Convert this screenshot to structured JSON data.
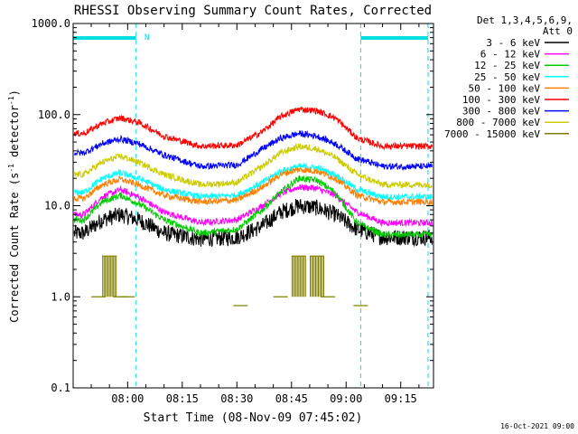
{
  "chart_data": {
    "type": "line",
    "title": "RHESSI Observing Summary Count Rates, Corrected",
    "xlabel": "Start Time (08-Nov-09 07:45:02)",
    "ylabel": "Corrected Count Rate (s",
    "ylabel_sup": "-1",
    "ylabel_mid": " detector",
    "ylabel_end": ")",
    "y_scale": "log",
    "ylim": [
      0.1,
      1000
    ],
    "xlim": [
      "07:45:02",
      "09:24:00"
    ],
    "x_ticks": [
      "08:00",
      "08:15",
      "08:30",
      "08:45",
      "09:00",
      "09:15"
    ],
    "y_ticks": [
      "0.1",
      "1.0",
      "10.0",
      "100.0",
      "1000.0"
    ],
    "legend_header": [
      "Det 1,3,4,5,6,9,",
      "Att 0"
    ],
    "legend_position": "right",
    "night_intervals": [
      [
        "07:45:02",
        "08:02:20"
      ],
      [
        "09:04:00",
        "09:22:30"
      ]
    ],
    "saa_marker": "N",
    "footer_date": "16-Oct-2021 09:00",
    "series": [
      {
        "name": "3 - 6 keV",
        "color": "#000000",
        "x": [
          "07:48",
          "07:53",
          "07:58",
          "08:03",
          "08:10",
          "08:20",
          "08:30",
          "08:37",
          "08:42",
          "08:47",
          "08:52",
          "08:57",
          "09:03",
          "09:10",
          "09:20"
        ],
        "y": [
          5.0,
          7.0,
          8.0,
          7.0,
          5.0,
          4.3,
          4.5,
          6.0,
          8.5,
          10.0,
          9.5,
          8.0,
          5.5,
          4.5,
          4.5
        ]
      },
      {
        "name": "6 - 12 keV",
        "color": "#ff00ff",
        "x": [
          "07:48",
          "07:53",
          "07:58",
          "08:03",
          "08:10",
          "08:20",
          "08:30",
          "08:37",
          "08:42",
          "08:47",
          "08:52",
          "08:57",
          "09:03",
          "09:10",
          "09:20"
        ],
        "y": [
          8.0,
          12.5,
          15.0,
          12.5,
          8.5,
          6.5,
          7.0,
          10.0,
          13.5,
          16.0,
          15.5,
          13.0,
          8.5,
          6.5,
          6.5
        ]
      },
      {
        "name": "12 - 25 keV",
        "color": "#00cc00",
        "x": [
          "07:48",
          "07:53",
          "07:58",
          "08:03",
          "08:10",
          "08:20",
          "08:30",
          "08:37",
          "08:42",
          "08:47",
          "08:52",
          "08:57",
          "09:03",
          "09:10",
          "09:20"
        ],
        "y": [
          7.0,
          11.0,
          13.0,
          10.5,
          7.0,
          5.0,
          5.5,
          9.0,
          14.0,
          20.0,
          19.0,
          14.0,
          6.5,
          4.8,
          4.8
        ]
      },
      {
        "name": "25 - 50 keV",
        "color": "#00ffff",
        "x": [
          "07:48",
          "07:53",
          "07:58",
          "08:03",
          "08:10",
          "08:20",
          "08:30",
          "08:37",
          "08:42",
          "08:47",
          "08:52",
          "08:57",
          "09:03",
          "09:10",
          "09:20"
        ],
        "y": [
          14.0,
          20.0,
          23.0,
          20.0,
          15.0,
          12.5,
          13.0,
          18.0,
          24.0,
          27.0,
          26.0,
          22.0,
          15.0,
          12.5,
          12.5
        ]
      },
      {
        "name": "50 - 100 keV",
        "color": "#ff8000",
        "x": [
          "07:48",
          "07:53",
          "07:58",
          "08:03",
          "08:10",
          "08:20",
          "08:30",
          "08:37",
          "08:42",
          "08:47",
          "08:52",
          "08:57",
          "09:03",
          "09:10",
          "09:20"
        ],
        "y": [
          12.0,
          17.0,
          19.5,
          17.0,
          13.0,
          11.0,
          11.5,
          16.0,
          22.0,
          25.0,
          24.0,
          20.0,
          13.0,
          11.0,
          11.0
        ]
      },
      {
        "name": "100 - 300 keV",
        "color": "#ff0000",
        "x": [
          "07:48",
          "07:53",
          "07:58",
          "08:03",
          "08:10",
          "08:20",
          "08:30",
          "08:37",
          "08:42",
          "08:47",
          "08:52",
          "08:57",
          "09:03",
          "09:10",
          "09:20"
        ],
        "y": [
          62.0,
          80.0,
          92.0,
          82.0,
          58.0,
          45.0,
          46.0,
          65.0,
          95.0,
          115.0,
          110.0,
          92.0,
          55.0,
          45.0,
          45.0
        ]
      },
      {
        "name": "300 - 800 keV",
        "color": "#0000ff",
        "x": [
          "07:48",
          "07:53",
          "07:58",
          "08:03",
          "08:10",
          "08:20",
          "08:30",
          "08:37",
          "08:42",
          "08:47",
          "08:52",
          "08:57",
          "09:03",
          "09:10",
          "09:20"
        ],
        "y": [
          38.0,
          48.0,
          54.0,
          48.0,
          36.0,
          27.0,
          28.0,
          42.0,
          55.0,
          62.0,
          58.0,
          48.0,
          33.0,
          27.0,
          27.0
        ]
      },
      {
        "name": "800 - 7000 keV",
        "color": "#cccc00",
        "x": [
          "07:48",
          "07:53",
          "07:58",
          "08:03",
          "08:10",
          "08:20",
          "08:30",
          "08:37",
          "08:42",
          "08:47",
          "08:52",
          "08:57",
          "09:03",
          "09:10",
          "09:20"
        ],
        "y": [
          22.0,
          30.0,
          35.0,
          30.0,
          22.0,
          17.0,
          18.0,
          27.0,
          38.0,
          45.0,
          42.0,
          34.0,
          22.0,
          17.0,
          17.0
        ]
      },
      {
        "name": "7000 - 15000 keV",
        "color": "#808000",
        "x": [
          "07:52",
          "07:55",
          "07:58",
          "08:00",
          "08:31",
          "08:42",
          "08:47",
          "08:52",
          "08:55",
          "09:04"
        ],
        "y": [
          1.0,
          2.8,
          1.0,
          1.0,
          0.8,
          1.0,
          2.8,
          2.8,
          1.0,
          0.8
        ]
      }
    ]
  }
}
